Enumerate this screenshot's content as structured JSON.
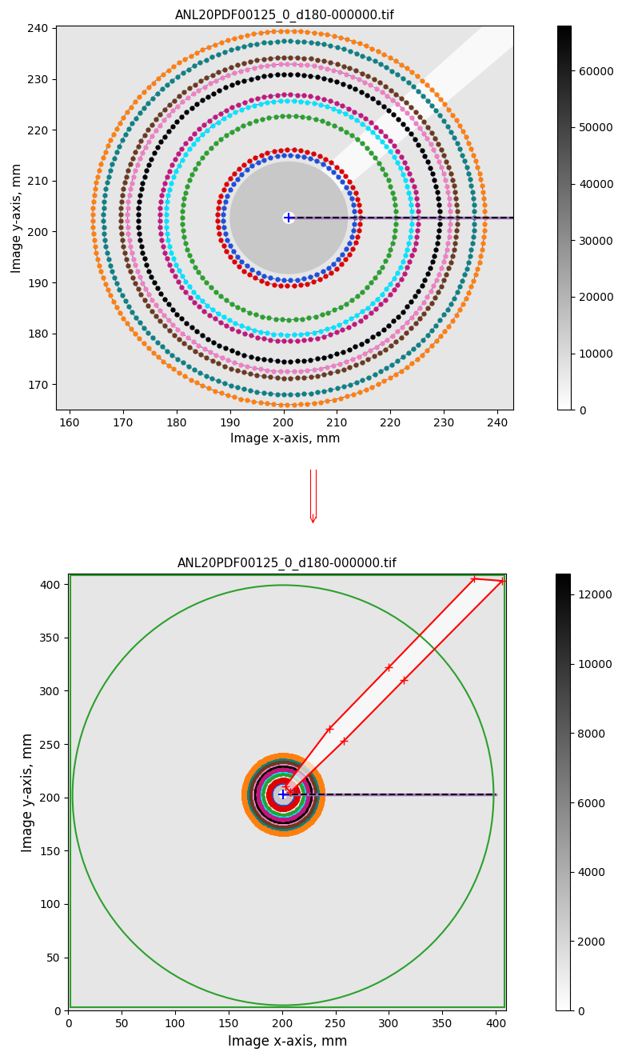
{
  "chart_data": [
    {
      "type": "image",
      "title": "ANL20PDF00125_0_d180-000000.tif",
      "x_label": "Image x-axis, mm",
      "y_label": "Image y-axis, mm",
      "xlim": [
        157.5,
        243
      ],
      "ylim": [
        165,
        240.5
      ],
      "xticks": [
        160,
        170,
        180,
        190,
        200,
        210,
        220,
        230,
        240
      ],
      "yticks": [
        170,
        180,
        190,
        200,
        210,
        220,
        230,
        240
      ],
      "colorbar": {
        "range": [
          0,
          68000
        ],
        "ticks": [
          0,
          10000,
          20000,
          30000,
          40000,
          50000,
          60000
        ]
      },
      "center": [
        201,
        202.7
      ],
      "rings": [
        {
          "radius": 12.3,
          "color": "#1f4fd8"
        },
        {
          "radius": 13.4,
          "color": "#e00000"
        },
        {
          "radius": 20.0,
          "color": "#2ca02c"
        },
        {
          "radius": 23.0,
          "color": "#00e5ff"
        },
        {
          "radius": 24.2,
          "color": "#c2187a"
        },
        {
          "radius": 28.2,
          "color": "#000000"
        },
        {
          "radius": 30.2,
          "color": "#f080c0"
        },
        {
          "radius": 31.5,
          "color": "#6b3a1e"
        },
        {
          "radius": 34.7,
          "color": "#108080"
        },
        {
          "radius": 36.7,
          "color": "#ff7f0e"
        }
      ],
      "radial_line": {
        "x": [
          201,
          243
        ],
        "y": [
          202.7,
          202.7
        ]
      },
      "shadow": [
        [
          199,
          204.5
        ],
        [
          203,
          201
        ],
        [
          243,
          236.5
        ],
        [
          243,
          241
        ],
        [
          238,
          241
        ]
      ]
    },
    {
      "type": "image",
      "title": "ANL20PDF00125_0_d180-000000.tif",
      "x_label": "Image x-axis, mm",
      "y_label": "Image y-axis, mm",
      "xlim": [
        0,
        410
      ],
      "ylim": [
        0,
        410
      ],
      "xticks": [
        0,
        50,
        100,
        150,
        200,
        250,
        300,
        350,
        400
      ],
      "yticks": [
        0,
        50,
        100,
        150,
        200,
        250,
        300,
        350,
        400
      ],
      "colorbar": {
        "range": [
          0,
          12600
        ],
        "ticks": [
          0,
          2000,
          4000,
          6000,
          8000,
          10000,
          12000
        ]
      },
      "center": [
        201,
        202.7
      ],
      "rings": [
        {
          "radius": 12.3,
          "color": "#1f4fd8"
        },
        {
          "radius": 13.4,
          "color": "#e00000"
        },
        {
          "radius": 20.0,
          "color": "#2ca02c"
        },
        {
          "radius": 23.0,
          "color": "#00e5ff"
        },
        {
          "radius": 24.2,
          "color": "#c2187a"
        },
        {
          "radius": 28.2,
          "color": "#000000"
        },
        {
          "radius": 30.2,
          "color": "#f080c0"
        },
        {
          "radius": 31.5,
          "color": "#6b3a1e"
        },
        {
          "radius": 34.7,
          "color": "#108080"
        },
        {
          "radius": 36.7,
          "color": "#ff7f0e"
        }
      ],
      "radial_line": {
        "x": [
          201,
          400
        ],
        "y": [
          202.7,
          202.7
        ]
      },
      "limit_circle": {
        "center": [
          201,
          202
        ],
        "radius": 197,
        "color": "#2ca02c"
      },
      "frame": {
        "x": [
          2,
          408
        ],
        "y": [
          3,
          408
        ],
        "color": "#2ca02c"
      },
      "mask": {
        "points": [
          [
            208,
            205
          ],
          [
            258,
            253
          ],
          [
            314,
            310
          ],
          [
            406,
            403
          ],
          [
            380,
            405
          ],
          [
            300,
            322
          ],
          [
            244,
            264
          ],
          [
            203,
            210
          ]
        ],
        "color": "#ff0000",
        "marker": "+"
      }
    }
  ]
}
